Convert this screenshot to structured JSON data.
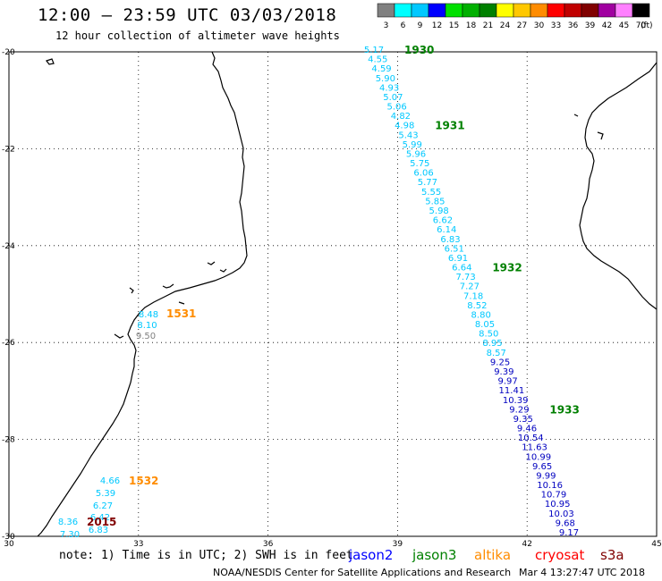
{
  "header": {
    "title": "12:00 – 23:59 UTC 03/03/2018",
    "subtitle": "12 hour collection of altimeter wave heights"
  },
  "colorbar": {
    "unit_label": "(ft)",
    "ticks": [
      "3",
      "6",
      "9",
      "12",
      "15",
      "18",
      "21",
      "24",
      "27",
      "30",
      "33",
      "36",
      "39",
      "42",
      "45",
      "70"
    ],
    "colors": [
      "#808080",
      "#00ffff",
      "#00c8ff",
      "#0000ff",
      "#00e000",
      "#00b000",
      "#008000",
      "#ffff00",
      "#ffc800",
      "#ff8c00",
      "#ff0000",
      "#c00000",
      "#800000",
      "#a000a0",
      "#ff80ff",
      "#000000"
    ]
  },
  "axes": {
    "lon_ticks": [
      "30",
      "33",
      "36",
      "39",
      "42",
      "45"
    ],
    "lat_ticks": [
      "-20",
      "-22",
      "-24",
      "-26",
      "-28",
      "-30"
    ],
    "lon_range": [
      30,
      45
    ],
    "lat_range": [
      -30,
      -20
    ]
  },
  "tracks": {
    "main": {
      "points": [
        {
          "v": "5.17",
          "c": "#00c8ff"
        },
        {
          "v": "4.55",
          "c": "#00c8ff"
        },
        {
          "v": "4.59",
          "c": "#00c8ff"
        },
        {
          "v": "5.90",
          "c": "#00c8ff"
        },
        {
          "v": "4.93",
          "c": "#00c8ff"
        },
        {
          "v": "5.07",
          "c": "#00c8ff"
        },
        {
          "v": "5.06",
          "c": "#00c8ff"
        },
        {
          "v": "4.82",
          "c": "#00c8ff"
        },
        {
          "v": "4.98",
          "c": "#00c8ff"
        },
        {
          "v": "5.43",
          "c": "#00c8ff"
        },
        {
          "v": "5.99",
          "c": "#00c8ff"
        },
        {
          "v": "5.96",
          "c": "#00c8ff"
        },
        {
          "v": "5.75",
          "c": "#00c8ff"
        },
        {
          "v": "6.06",
          "c": "#00c8ff"
        },
        {
          "v": "5.77",
          "c": "#00c8ff"
        },
        {
          "v": "5.55",
          "c": "#00c8ff"
        },
        {
          "v": "5.85",
          "c": "#00c8ff"
        },
        {
          "v": "5.98",
          "c": "#00c8ff"
        },
        {
          "v": "6.62",
          "c": "#00c8ff"
        },
        {
          "v": "6.14",
          "c": "#00c8ff"
        },
        {
          "v": "6.83",
          "c": "#00c8ff"
        },
        {
          "v": "6.51",
          "c": "#00c8ff"
        },
        {
          "v": "6.91",
          "c": "#00c8ff"
        },
        {
          "v": "6.64",
          "c": "#00c8ff"
        },
        {
          "v": "7.73",
          "c": "#00c8ff"
        },
        {
          "v": "7.27",
          "c": "#00c8ff"
        },
        {
          "v": "7.18",
          "c": "#00c8ff"
        },
        {
          "v": "8.52",
          "c": "#00c8ff"
        },
        {
          "v": "8.80",
          "c": "#00c8ff"
        },
        {
          "v": "8.05",
          "c": "#00c8ff"
        },
        {
          "v": "8.50",
          "c": "#00c8ff"
        },
        {
          "v": "8.95",
          "c": "#00c8ff"
        },
        {
          "v": "8.57",
          "c": "#00c8ff"
        },
        {
          "v": "9.25",
          "c": "#0000c0"
        },
        {
          "v": "9.39",
          "c": "#0000c0"
        },
        {
          "v": "9.97",
          "c": "#0000c0"
        },
        {
          "v": "11.41",
          "c": "#0000c0"
        },
        {
          "v": "10.39",
          "c": "#0000c0"
        },
        {
          "v": "9.29",
          "c": "#0000c0"
        },
        {
          "v": "9.35",
          "c": "#0000c0"
        },
        {
          "v": "9.46",
          "c": "#0000c0"
        },
        {
          "v": "10.54",
          "c": "#0000c0"
        },
        {
          "v": "11.63",
          "c": "#0000c0"
        },
        {
          "v": "10.99",
          "c": "#0000c0"
        },
        {
          "v": "9.65",
          "c": "#0000c0"
        },
        {
          "v": "9.99",
          "c": "#0000c0"
        },
        {
          "v": "10.16",
          "c": "#0000c0"
        },
        {
          "v": "10.79",
          "c": "#0000c0"
        },
        {
          "v": "10.95",
          "c": "#0000c0"
        },
        {
          "v": "10.03",
          "c": "#0000c0"
        },
        {
          "v": "9.68",
          "c": "#0000c0"
        },
        {
          "v": "9.17",
          "c": "#0000c0"
        }
      ],
      "times": [
        {
          "t": "1930",
          "c": "#008000"
        },
        {
          "t": "1931",
          "c": "#008000"
        },
        {
          "t": "1932",
          "c": "#008000"
        },
        {
          "t": "1933",
          "c": "#008000"
        }
      ]
    },
    "coast_north": {
      "points": [
        {
          "v": "8.48",
          "c": "#00c8ff"
        },
        {
          "v": "8.10",
          "c": "#00c8ff"
        },
        {
          "v": "9.50",
          "c": "#808080"
        }
      ],
      "time": {
        "t": "1531",
        "c": "#ff8c00"
      }
    },
    "coast_south": {
      "points": [
        {
          "v": "4.66",
          "c": "#00c8ff"
        },
        {
          "v": "5.39",
          "c": "#00c8ff"
        },
        {
          "v": "6.27",
          "c": "#00c8ff"
        },
        {
          "v": "6.42",
          "c": "#00c8ff"
        },
        {
          "v": "8.36",
          "c": "#00c8ff"
        },
        {
          "v": "7.30",
          "c": "#00c8ff"
        },
        {
          "v": "6.83",
          "c": "#00c8ff"
        }
      ],
      "times": [
        {
          "t": "1532",
          "c": "#ff8c00"
        },
        {
          "t": "2015",
          "c": "#800000"
        }
      ]
    }
  },
  "footer": {
    "note": "note: 1) Time is in UTC; 2) SWH is in feet",
    "legend": [
      {
        "name": "jason2",
        "color": "#0000ff"
      },
      {
        "name": "jason3",
        "color": "#008000"
      },
      {
        "name": "altika",
        "color": "#ff8c00"
      },
      {
        "name": "cryosat",
        "color": "#ff0000"
      },
      {
        "name": "s3a",
        "color": "#800000"
      }
    ],
    "credit": "NOAA/NESDIS Center for Satellite Applications and Research",
    "timestamp": "Mar  4 13:27:47 UTC 2018"
  }
}
